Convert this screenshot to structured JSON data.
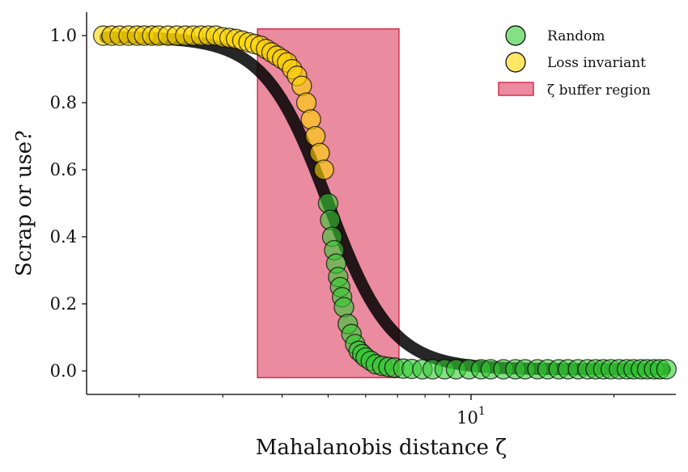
{
  "chart_data": {
    "type": "scatter",
    "title": "",
    "xlabel": "Mahalanobis distance ζ",
    "ylabel": "Scrap or use?",
    "xscale": "log",
    "xlim": [
      1.55,
      27.0
    ],
    "ylim": [
      -0.07,
      1.07
    ],
    "yticks": [
      0.0,
      0.2,
      0.4,
      0.6,
      0.8,
      1.0
    ],
    "ytick_labels": [
      "0.0",
      "0.2",
      "0.4",
      "0.6",
      "0.8",
      "1.0"
    ],
    "xtick_label": {
      "value": 10,
      "base": "10",
      "exponent": "1"
    },
    "grid": false,
    "legend": {
      "position": "top-right",
      "entries": [
        "Random",
        "Loss invariant",
        "ζ buffer region"
      ]
    },
    "colors": {
      "random": "#33cc33",
      "loss_invariant": "#ffd700",
      "buffer_region": "#e15a76"
    },
    "buffer_region": {
      "x_range": [
        3.55,
        7.05
      ],
      "y_range": [
        -0.02,
        1.02
      ]
    },
    "sigmoid_fit": {
      "center": 5.0,
      "steepness": 6.5,
      "upper": 0.996,
      "lower": 0.005
    },
    "series": [
      {
        "name": "Random",
        "x": [
          5.0,
          5.05,
          5.1,
          5.15,
          5.2,
          5.25,
          5.3,
          5.35,
          5.4,
          5.5,
          5.6,
          5.7,
          5.8,
          5.9,
          6.0,
          6.15,
          6.3,
          6.5,
          6.7,
          6.9,
          7.2,
          7.5,
          7.9,
          8.3,
          8.8,
          9.3,
          9.9,
          10.5,
          11.0,
          11.7,
          12.4,
          13.0,
          13.8,
          14.5,
          15.3,
          16.0,
          16.8,
          17.6,
          18.3,
          19.0,
          19.7,
          20.5,
          21.3,
          22.0,
          22.8,
          23.5,
          24.3,
          25.0,
          25.8
        ],
        "y": [
          0.5,
          0.45,
          0.4,
          0.36,
          0.32,
          0.28,
          0.25,
          0.22,
          0.19,
          0.14,
          0.11,
          0.08,
          0.06,
          0.05,
          0.04,
          0.03,
          0.02,
          0.015,
          0.012,
          0.01,
          0.007,
          0.006,
          0.005,
          0.005,
          0.005,
          0.005,
          0.005,
          0.005,
          0.005,
          0.005,
          0.005,
          0.005,
          0.005,
          0.005,
          0.005,
          0.005,
          0.005,
          0.005,
          0.005,
          0.005,
          0.005,
          0.005,
          0.005,
          0.005,
          0.005,
          0.005,
          0.005,
          0.005,
          0.005
        ]
      },
      {
        "name": "Loss invariant",
        "x": [
          1.68,
          1.75,
          1.82,
          1.9,
          1.98,
          2.05,
          2.13,
          2.2,
          2.3,
          2.4,
          2.5,
          2.6,
          2.7,
          2.8,
          2.9,
          3.0,
          3.1,
          3.2,
          3.3,
          3.4,
          3.5,
          3.6,
          3.7,
          3.8,
          3.9,
          4.0,
          4.1,
          4.2,
          4.3,
          4.4,
          4.5,
          4.6,
          4.7,
          4.8,
          4.9
        ],
        "y": [
          1.0,
          1.0,
          1.0,
          1.0,
          1.0,
          1.0,
          1.0,
          1.0,
          1.0,
          1.0,
          1.0,
          1.0,
          1.0,
          1.0,
          1.0,
          0.995,
          0.993,
          0.99,
          0.985,
          0.98,
          0.975,
          0.97,
          0.96,
          0.95,
          0.94,
          0.93,
          0.92,
          0.9,
          0.88,
          0.85,
          0.8,
          0.75,
          0.7,
          0.65,
          0.6
        ]
      }
    ]
  }
}
